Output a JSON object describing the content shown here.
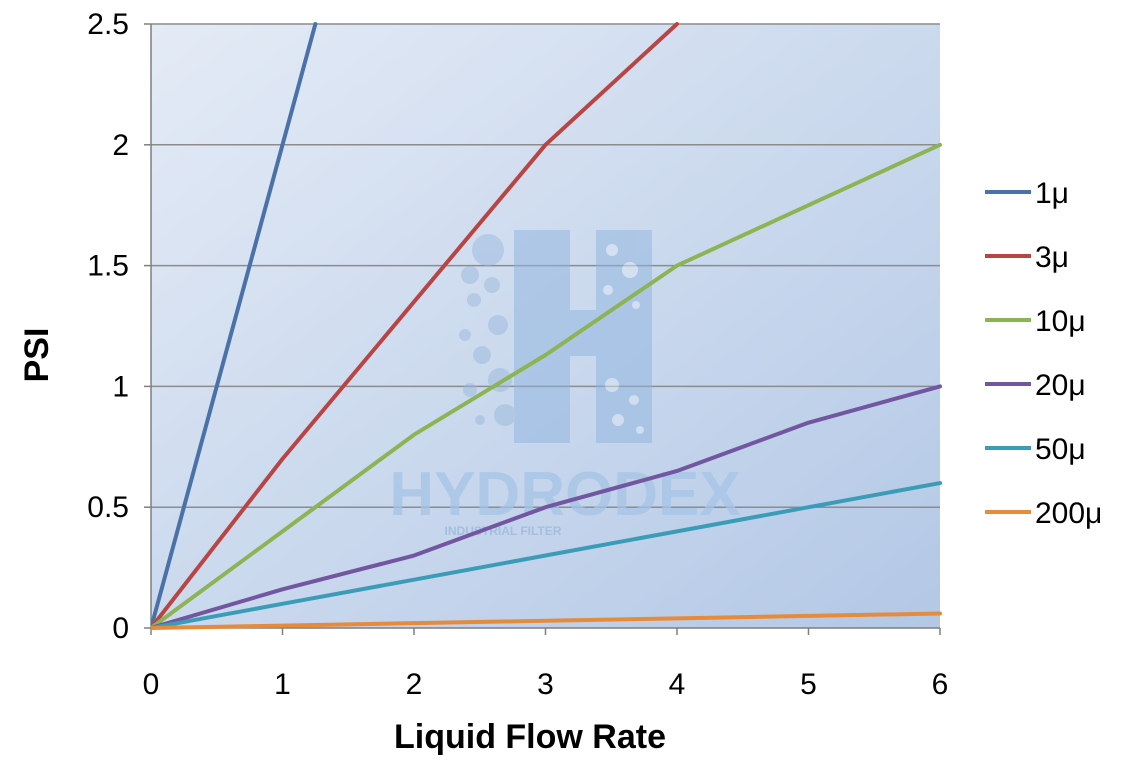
{
  "chart_data": {
    "type": "line",
    "xlabel": "Liquid Flow Rate",
    "ylabel": "PSI",
    "xlim": [
      0,
      6
    ],
    "ylim": [
      0,
      2.5
    ],
    "x_ticks": [
      "0",
      "1",
      "2",
      "3",
      "4",
      "5",
      "6"
    ],
    "y_ticks": [
      "0",
      "0.5",
      "1",
      "1.5",
      "2",
      "2.5"
    ],
    "grid": "horizontal",
    "legend_position": "right",
    "series": [
      {
        "name": "1μ",
        "color": "#4a72a8",
        "points": [
          [
            0,
            0
          ],
          [
            1,
            2
          ],
          [
            1.25,
            2.5
          ]
        ]
      },
      {
        "name": "3μ",
        "color": "#b84543",
        "points": [
          [
            0,
            0
          ],
          [
            1,
            0.7
          ],
          [
            2,
            1.35
          ],
          [
            3,
            2
          ],
          [
            4,
            2.5
          ]
        ]
      },
      {
        "name": "10μ",
        "color": "#8cb452",
        "points": [
          [
            0,
            0
          ],
          [
            1,
            0.4
          ],
          [
            2,
            0.8
          ],
          [
            3,
            1.13
          ],
          [
            4,
            1.5
          ],
          [
            5,
            1.75
          ],
          [
            6,
            2
          ]
        ]
      },
      {
        "name": "20μ",
        "color": "#7256a0",
        "points": [
          [
            0,
            0
          ],
          [
            1,
            0.16
          ],
          [
            2,
            0.3
          ],
          [
            3,
            0.5
          ],
          [
            4,
            0.65
          ],
          [
            5,
            0.85
          ],
          [
            6,
            1
          ]
        ]
      },
      {
        "name": "50μ",
        "color": "#3b9cb8",
        "points": [
          [
            0,
            0
          ],
          [
            1,
            0.1
          ],
          [
            2,
            0.2
          ],
          [
            3,
            0.3
          ],
          [
            4,
            0.4
          ],
          [
            5,
            0.5
          ],
          [
            6,
            0.6
          ]
        ]
      },
      {
        "name": "200μ",
        "color": "#e58b3a",
        "points": [
          [
            0,
            0
          ],
          [
            1,
            0.01
          ],
          [
            2,
            0.02
          ],
          [
            3,
            0.03
          ],
          [
            4,
            0.04
          ],
          [
            5,
            0.05
          ],
          [
            6,
            0.06
          ]
        ]
      }
    ]
  },
  "watermark": {
    "brand": "HYDRODEX",
    "tagline": "INDUSTRIAL FILTER"
  }
}
